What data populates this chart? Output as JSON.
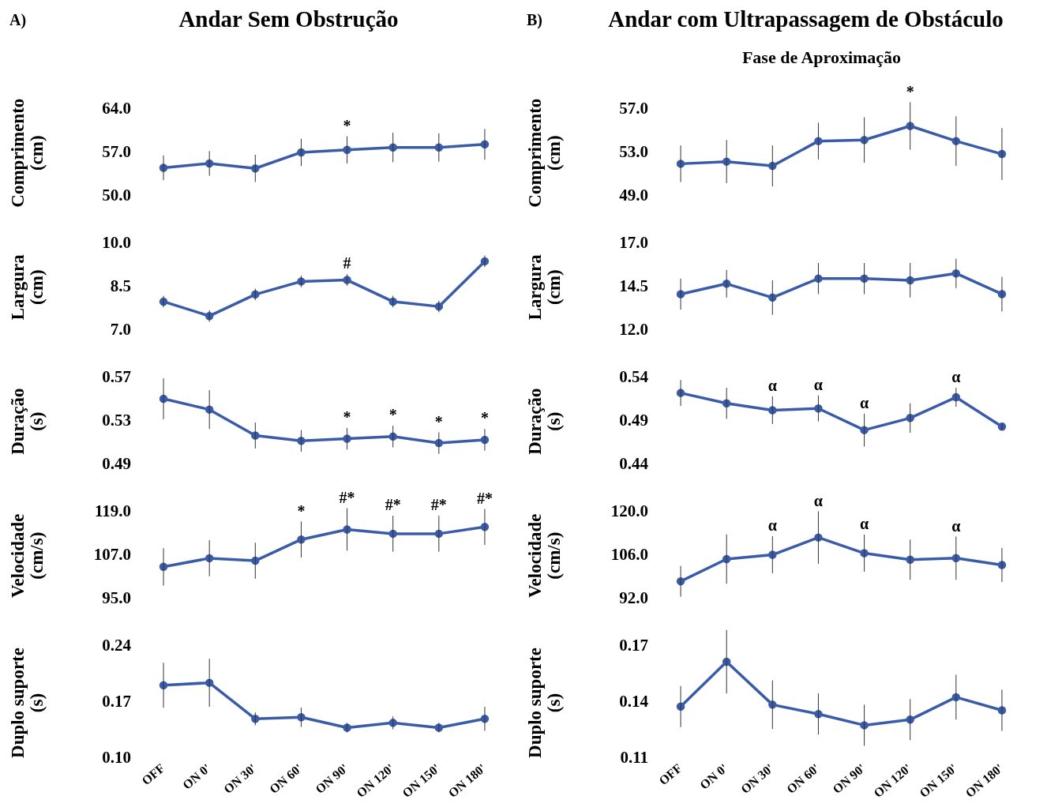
{
  "chart_data": [
    {
      "type": "line",
      "title": "Andar Sem Obstrução",
      "annotations": [
        "A)",
        {
          "text": "*",
          "x": "ON 90'",
          "y": 57.5
        }
      ],
      "ylabel": "Comprimento (cm)",
      "categories": [
        "OFF",
        "ON 0'",
        "ON 30'",
        "ON 60'",
        "ON 90'",
        "ON 120'",
        "ON 150'",
        "ON 180'"
      ],
      "series": [
        {
          "color": "#3a5ca8",
          "values": [
            54.6,
            55.3,
            54.5,
            57.1,
            57.5,
            57.9,
            57.9,
            58.4
          ],
          "errors": [
            2.0,
            2.0,
            2.2,
            2.2,
            2.2,
            2.4,
            2.3,
            2.5
          ]
        }
      ],
      "ylim": [
        50,
        64
      ],
      "yticks": [
        {
          "value": 64,
          "label": "64.0"
        },
        {
          "value": 57,
          "label": "57.0"
        },
        {
          "value": 50,
          "label": "50.0"
        }
      ],
      "marker": "circle",
      "line_style": "solid",
      "tick_labels": "y"
    },
    {
      "type": "line",
      "annotations": [
        {
          "text": "#",
          "x": "ON 90'",
          "y": 8.75
        }
      ],
      "ylabel": "Largura (cm)",
      "categories": [
        "OFF",
        "ON 0'",
        "ON 30'",
        "ON 60'",
        "ON 90'",
        "ON 120'",
        "ON 150'",
        "ON 180'"
      ],
      "series": [
        {
          "color": "#3a5ca8",
          "values": [
            8.0,
            7.5,
            8.25,
            8.7,
            8.75,
            8.0,
            7.83,
            9.4
          ],
          "errors": [
            0.2,
            0.2,
            0.2,
            0.2,
            0.2,
            0.2,
            0.2,
            0.2
          ]
        }
      ],
      "ylim": [
        7,
        10
      ],
      "yticks": [
        {
          "value": 10,
          "label": "10.0"
        },
        {
          "value": 8.5,
          "label": "8.5"
        },
        {
          "value": 7,
          "label": "7.0"
        }
      ],
      "marker": "circle",
      "line_style": "solid",
      "tick_labels": "y"
    },
    {
      "type": "line",
      "annotations": [
        {
          "text": "*",
          "x": "ON 90'",
          "y": 0.514
        },
        {
          "text": "*",
          "x": "ON 120'",
          "y": 0.516
        },
        {
          "text": "*",
          "x": "ON 150'",
          "y": 0.51
        },
        {
          "text": "*",
          "x": "ON 180'",
          "y": 0.513
        }
      ],
      "ylabel": "Duração (s)",
      "categories": [
        "OFF",
        "ON 0'",
        "ON 30'",
        "ON 60'",
        "ON 90'",
        "ON 120'",
        "ON 150'",
        "ON 180'"
      ],
      "series": [
        {
          "color": "#3a5ca8",
          "values": [
            0.551,
            0.541,
            0.517,
            0.512,
            0.514,
            0.516,
            0.51,
            0.513
          ],
          "errors": [
            0.019,
            0.018,
            0.012,
            0.01,
            0.01,
            0.01,
            0.01,
            0.01
          ]
        }
      ],
      "ylim": [
        0.49,
        0.57
      ],
      "yticks": [
        0.57,
        0.53,
        0.49
      ],
      "marker": "circle",
      "line_style": "solid",
      "tick_labels": "y"
    },
    {
      "type": "line",
      "annotations": [
        {
          "text": "*",
          "x": "ON 60'",
          "y": 111.5
        },
        {
          "text": "#*",
          "x": "ON 90'",
          "y": 114.3
        },
        {
          "text": "#*",
          "x": "ON 120'",
          "y": 113.1
        },
        {
          "text": "#*",
          "x": "ON 150'",
          "y": 113.1
        },
        {
          "text": "#*",
          "x": "ON 180'",
          "y": 115
        }
      ],
      "ylabel": "Velocidade (cm/s)",
      "categories": [
        "OFF",
        "ON 0'",
        "ON 30'",
        "ON 60'",
        "ON 90'",
        "ON 120'",
        "ON 150'",
        "ON 180'"
      ],
      "series": [
        {
          "color": "#3a5ca8",
          "values": [
            103.9,
            106.3,
            105.6,
            111.5,
            114.3,
            113.1,
            113.1,
            115
          ],
          "errors": [
            5.2,
            5.0,
            5.0,
            5.0,
            5.9,
            5.0,
            5.0,
            5.0
          ]
        }
      ],
      "ylim": [
        95,
        119
      ],
      "yticks": [
        {
          "value": 119,
          "label": "119.0"
        },
        {
          "value": 107,
          "label": "107.0"
        },
        {
          "value": 95,
          "label": "95.0"
        }
      ],
      "marker": "circle",
      "line_style": "solid",
      "tick_labels": "y"
    },
    {
      "type": "line",
      "ylabel": "Duplo suporte (s)",
      "categories": [
        "OFF",
        "ON 0'",
        "ON 30'",
        "ON 60'",
        "ON 90'",
        "ON 120'",
        "ON 150'",
        "ON 180'"
      ],
      "series": [
        {
          "color": "#3a5ca8",
          "values": [
            0.192,
            0.195,
            0.15,
            0.152,
            0.139,
            0.145,
            0.139,
            0.15
          ],
          "errors": [
            0.028,
            0.03,
            0.008,
            0.012,
            0.006,
            0.008,
            0.006,
            0.015
          ]
        }
      ],
      "ylim": [
        0.1,
        0.24
      ],
      "yticks": [
        0.24,
        0.17,
        {
          "value": 0.1,
          "label": "0.10"
        }
      ],
      "marker": "circle",
      "line_style": "solid"
    },
    {
      "type": "line",
      "title": "Andar com Ultrapassagem de Obstáculo",
      "subtitle": "Fase de Aproximação",
      "annotations": [
        "B)",
        {
          "text": "*",
          "x": "ON 120'",
          "y": 55.5
        }
      ],
      "ylabel": "Comprimento (cm)",
      "categories": [
        "OFF",
        "ON 0'",
        "ON 30'",
        "ON 60'",
        "ON 90'",
        "ON 120'",
        "ON 150'",
        "ON 180'"
      ],
      "series": [
        {
          "color": "#3a5ca8",
          "values": [
            52.0,
            52.2,
            51.8,
            54.1,
            54.2,
            55.5,
            54.1,
            52.9
          ],
          "errors": [
            1.7,
            2.0,
            1.9,
            1.7,
            2.1,
            2.2,
            2.3,
            2.4
          ]
        }
      ],
      "ylim": [
        49,
        57
      ],
      "yticks": [
        {
          "value": 57,
          "label": "57.0"
        },
        {
          "value": 53,
          "label": "53.0"
        },
        {
          "value": 49,
          "label": "49.0"
        }
      ],
      "marker": "circle",
      "line_style": "solid",
      "tick_labels": "y"
    },
    {
      "type": "line",
      "ylabel": "Largura (cm)",
      "categories": [
        "OFF",
        "ON 0'",
        "ON 30'",
        "ON 60'",
        "ON 90'",
        "ON 120'",
        "ON 150'",
        "ON 180'"
      ],
      "series": [
        {
          "color": "#3a5ca8",
          "values": [
            14.1,
            14.7,
            13.9,
            15.0,
            15.0,
            14.9,
            15.3,
            14.1
          ],
          "errors": [
            0.9,
            0.8,
            1.0,
            0.9,
            0.9,
            1.0,
            0.85,
            1.0
          ]
        }
      ],
      "ylim": [
        12,
        17
      ],
      "yticks": [
        {
          "value": 17,
          "label": "17.0"
        },
        {
          "value": 14.5,
          "label": "14.5"
        },
        {
          "value": 12,
          "label": "12.0"
        }
      ],
      "marker": "circle",
      "line_style": "solid",
      "tick_labels": "y"
    },
    {
      "type": "line",
      "annotations": [
        {
          "text": "α",
          "x": "ON 30'",
          "y": 0.503
        },
        {
          "text": "α",
          "x": "ON 60'",
          "y": 0.505
        },
        {
          "text": "α",
          "x": "ON 90'",
          "y": 0.48
        },
        {
          "text": "α",
          "x": "ON 150'",
          "y": 0.518
        }
      ],
      "ylabel": "Duração (s)",
      "categories": [
        "OFF",
        "ON 0'",
        "ON 30'",
        "ON 60'",
        "ON 90'",
        "ON 120'",
        "ON 150'",
        "ON 180'"
      ],
      "series": [
        {
          "color": "#3a5ca8",
          "values": [
            0.523,
            0.511,
            0.503,
            0.505,
            0.48,
            0.494,
            0.518,
            0.484
          ],
          "errors": [
            0.015,
            0.018,
            0.016,
            0.015,
            0.019,
            0.017,
            0.011,
            0.004
          ]
        }
      ],
      "ylim": [
        0.44,
        0.54
      ],
      "yticks": [
        0.54,
        0.49,
        0.44
      ],
      "marker": "circle",
      "line_style": "solid",
      "tick_labels": "y"
    },
    {
      "type": "line",
      "annotations": [
        {
          "text": "α",
          "x": "ON 30'",
          "y": 106.3
        },
        {
          "text": "α",
          "x": "ON 60'",
          "y": 111.9
        },
        {
          "text": "α",
          "x": "ON 90'",
          "y": 106.8
        },
        {
          "text": "α",
          "x": "ON 150'",
          "y": 105.2
        }
      ],
      "ylabel": "Velocidade (cm/s)",
      "categories": [
        "OFF",
        "ON 0'",
        "ON 30'",
        "ON 60'",
        "ON 90'",
        "ON 120'",
        "ON 150'",
        "ON 180'"
      ],
      "series": [
        {
          "color": "#3a5ca8",
          "values": [
            97.7,
            104.9,
            106.3,
            111.9,
            106.8,
            104.7,
            105.2,
            103.0
          ],
          "errors": [
            5.0,
            8.0,
            6.0,
            8.5,
            6.0,
            6.5,
            7.0,
            5.5
          ]
        }
      ],
      "ylim": [
        92,
        120
      ],
      "yticks": [
        {
          "value": 120,
          "label": "120.0"
        },
        {
          "value": 106,
          "label": "106.0"
        },
        {
          "value": 92,
          "label": "92.0"
        }
      ],
      "marker": "circle",
      "line_style": "solid",
      "tick_labels": "y"
    },
    {
      "type": "line",
      "ylabel": "Duplo suporte (s)",
      "categories": [
        "OFF",
        "ON 0'",
        "ON 30'",
        "ON 60'",
        "ON 90'",
        "ON 120'",
        "ON 150'",
        "ON 180'"
      ],
      "series": [
        {
          "color": "#3a5ca8",
          "values": [
            0.138,
            0.162,
            0.139,
            0.134,
            0.128,
            0.131,
            0.143,
            0.136
          ],
          "errors": [
            0.011,
            0.017,
            0.013,
            0.011,
            0.011,
            0.011,
            0.012,
            0.011
          ]
        }
      ],
      "ylim": [
        0.11,
        0.17
      ],
      "yticks": [
        0.17,
        0.14,
        0.11
      ],
      "marker": "circle",
      "line_style": "solid"
    }
  ]
}
